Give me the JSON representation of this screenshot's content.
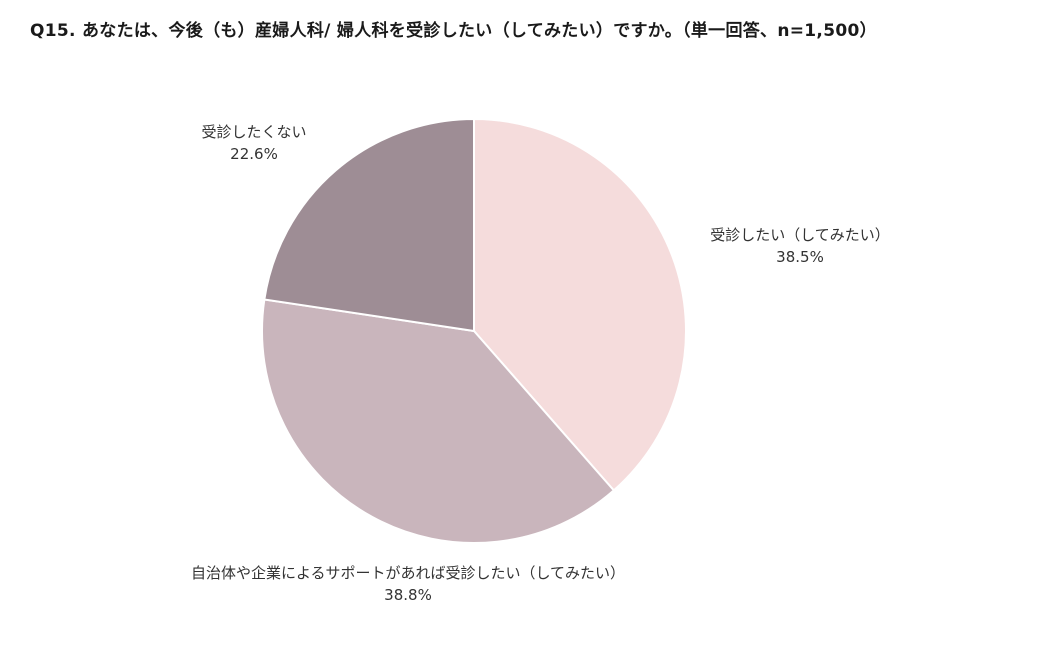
{
  "title": "Q15.  あなたは、今後（も）産婦人科/ 婦人科を受診したい（してみたい）ですか。（単一回答、n=1,500）",
  "chart_data": {
    "type": "pie",
    "title": "Q15.  あなたは、今後（も）産婦人科/ 婦人科を受診したい（してみたい）ですか。（単一回答、n=1,500）",
    "start_angle_deg": 0,
    "direction": "clockwise",
    "slices": [
      {
        "label": "受診したい（してみたい）",
        "value": 38.5,
        "pct_label": "38.5%",
        "color": "#f5dcdc"
      },
      {
        "label": "自治体や企業によるサポートがあれば受診したい（してみたい）",
        "value": 38.8,
        "pct_label": "38.8%",
        "color": "#c9b5bc"
      },
      {
        "label": "受診したくない",
        "value": 22.6,
        "pct_label": "22.6%",
        "color": "#9e8d95"
      }
    ]
  }
}
